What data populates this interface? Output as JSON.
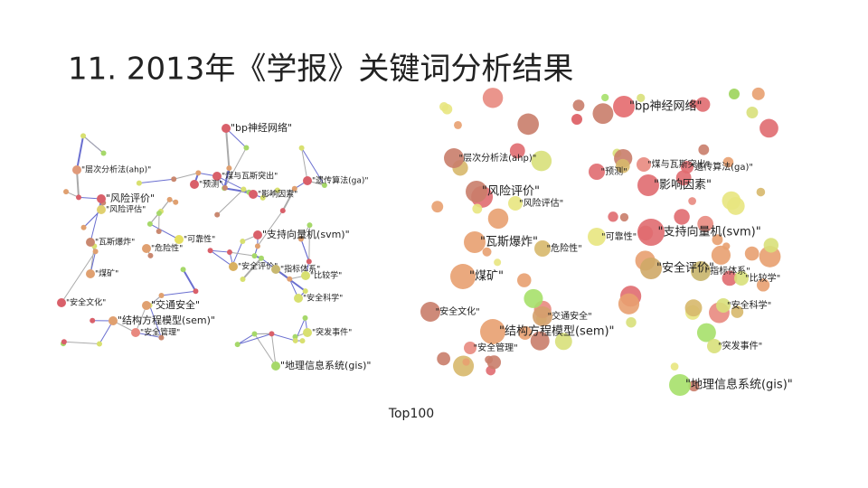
{
  "title": "11. 2013年《学报》关键词分析结果",
  "caption": "Top100",
  "nodes": [
    {
      "label": "\"bp神经网络\""
    },
    {
      "label": "\"层次分析法(ahp)\""
    },
    {
      "label": "\"煤与瓦斯突出\""
    },
    {
      "label": "\"预测\""
    },
    {
      "label": "\"遗传算法(ga)\""
    },
    {
      "label": "\"风险评价\""
    },
    {
      "label": "\"影响因素\""
    },
    {
      "label": "\"风险评估\""
    },
    {
      "label": "\"可靠性\""
    },
    {
      "label": "\"支持向量机(svm)\""
    },
    {
      "label": "\"瓦斯爆炸\""
    },
    {
      "label": "\"危险性\""
    },
    {
      "label": "\"安全评价\""
    },
    {
      "label": "\"指标体系\""
    },
    {
      "label": "\"煤矿\""
    },
    {
      "label": "\"比较学\""
    },
    {
      "label": "\"安全文化\""
    },
    {
      "label": "\"交通安全\""
    },
    {
      "label": "\"安全科学\""
    },
    {
      "label": "\"结构方程模型(sem)\""
    },
    {
      "label": "\"安全管理\""
    },
    {
      "label": "\"突发事件\""
    },
    {
      "label": "\"地理信息系统(gis)\""
    }
  ]
}
